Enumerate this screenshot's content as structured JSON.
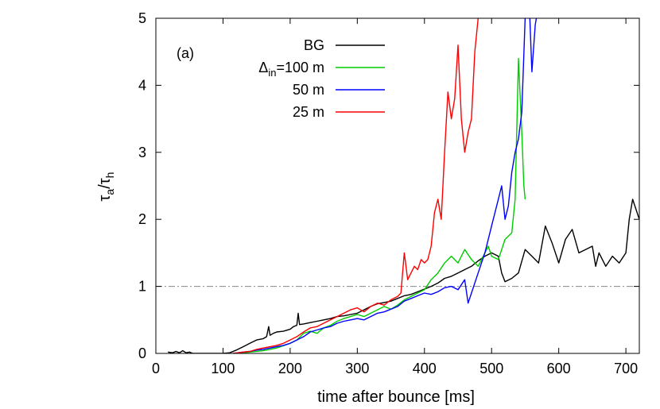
{
  "chart_data": {
    "type": "line",
    "panel_label": "(a)",
    "xlabel": "time after bounce [ms]",
    "ylabel": {
      "base": "τ",
      "sub1": "a",
      "slash": "/",
      "base2": "τ",
      "sub2": "h"
    },
    "xlim": [
      0,
      720
    ],
    "ylim": [
      0,
      5
    ],
    "xticks": [
      0,
      100,
      200,
      300,
      400,
      500,
      600,
      700
    ],
    "yticks": [
      0,
      1,
      2,
      3,
      4,
      5
    ],
    "grid": false,
    "legend_position": "top-center",
    "reference_line": {
      "y": 1,
      "style": "dash-dot",
      "color": "#888888"
    },
    "series": [
      {
        "key": "bg",
        "label": "BG",
        "color": "#000000",
        "points": [
          [
            18,
            0.02
          ],
          [
            25,
            0.01
          ],
          [
            30,
            0.03
          ],
          [
            35,
            0.01
          ],
          [
            40,
            0.04
          ],
          [
            45,
            0.01
          ],
          [
            50,
            0.02
          ],
          [
            55,
            0.0
          ],
          [
            100,
            0.0
          ],
          [
            110,
            0.01
          ],
          [
            120,
            0.05
          ],
          [
            130,
            0.1
          ],
          [
            140,
            0.15
          ],
          [
            150,
            0.2
          ],
          [
            160,
            0.22
          ],
          [
            165,
            0.25
          ],
          [
            168,
            0.4
          ],
          [
            170,
            0.27
          ],
          [
            175,
            0.3
          ],
          [
            180,
            0.32
          ],
          [
            190,
            0.33
          ],
          [
            200,
            0.36
          ],
          [
            205,
            0.4
          ],
          [
            210,
            0.42
          ],
          [
            212,
            0.6
          ],
          [
            214,
            0.43
          ],
          [
            220,
            0.44
          ],
          [
            230,
            0.46
          ],
          [
            240,
            0.48
          ],
          [
            250,
            0.5
          ],
          [
            260,
            0.52
          ],
          [
            270,
            0.55
          ],
          [
            280,
            0.56
          ],
          [
            290,
            0.58
          ],
          [
            300,
            0.6
          ],
          [
            310,
            0.65
          ],
          [
            320,
            0.7
          ],
          [
            330,
            0.74
          ],
          [
            340,
            0.76
          ],
          [
            350,
            0.78
          ],
          [
            360,
            0.82
          ],
          [
            370,
            0.86
          ],
          [
            380,
            0.88
          ],
          [
            390,
            0.92
          ],
          [
            400,
            0.96
          ],
          [
            410,
            1.0
          ],
          [
            420,
            1.05
          ],
          [
            430,
            1.12
          ],
          [
            440,
            1.15
          ],
          [
            450,
            1.2
          ],
          [
            460,
            1.25
          ],
          [
            470,
            1.3
          ],
          [
            480,
            1.38
          ],
          [
            490,
            1.45
          ],
          [
            500,
            1.5
          ],
          [
            510,
            1.45
          ],
          [
            515,
            1.2
          ],
          [
            520,
            1.07
          ],
          [
            530,
            1.12
          ],
          [
            540,
            1.2
          ],
          [
            550,
            1.55
          ],
          [
            560,
            1.45
          ],
          [
            570,
            1.35
          ],
          [
            580,
            1.9
          ],
          [
            590,
            1.65
          ],
          [
            600,
            1.35
          ],
          [
            610,
            1.7
          ],
          [
            620,
            1.85
          ],
          [
            630,
            1.5
          ],
          [
            640,
            1.55
          ],
          [
            650,
            1.6
          ],
          [
            655,
            1.3
          ],
          [
            660,
            1.5
          ],
          [
            670,
            1.3
          ],
          [
            680,
            1.45
          ],
          [
            690,
            1.35
          ],
          [
            700,
            1.5
          ],
          [
            705,
            2.0
          ],
          [
            710,
            2.3
          ],
          [
            715,
            2.15
          ],
          [
            720,
            2.0
          ]
        ]
      },
      {
        "key": "g100",
        "label": "Δ",
        "label_sub": "in",
        "label_tail": "=100 m",
        "color": "#00cc00",
        "points": [
          [
            120,
            0.0
          ],
          [
            140,
            0.02
          ],
          [
            160,
            0.04
          ],
          [
            180,
            0.08
          ],
          [
            200,
            0.15
          ],
          [
            210,
            0.2
          ],
          [
            220,
            0.3
          ],
          [
            230,
            0.33
          ],
          [
            240,
            0.3
          ],
          [
            250,
            0.38
          ],
          [
            260,
            0.42
          ],
          [
            270,
            0.48
          ],
          [
            280,
            0.52
          ],
          [
            290,
            0.55
          ],
          [
            300,
            0.58
          ],
          [
            310,
            0.55
          ],
          [
            320,
            0.6
          ],
          [
            330,
            0.65
          ],
          [
            340,
            0.7
          ],
          [
            350,
            0.66
          ],
          [
            360,
            0.72
          ],
          [
            370,
            0.8
          ],
          [
            380,
            0.85
          ],
          [
            390,
            0.9
          ],
          [
            400,
            0.95
          ],
          [
            410,
            1.1
          ],
          [
            420,
            1.2
          ],
          [
            430,
            1.35
          ],
          [
            440,
            1.45
          ],
          [
            450,
            1.35
          ],
          [
            460,
            1.55
          ],
          [
            470,
            1.4
          ],
          [
            480,
            1.3
          ],
          [
            490,
            1.5
          ],
          [
            495,
            1.6
          ],
          [
            500,
            1.45
          ],
          [
            510,
            1.4
          ],
          [
            520,
            1.7
          ],
          [
            530,
            1.8
          ],
          [
            535,
            2.3
          ],
          [
            540,
            4.4
          ],
          [
            545,
            3.3
          ],
          [
            548,
            2.5
          ],
          [
            550,
            2.3
          ]
        ]
      },
      {
        "key": "b50",
        "label": "50 m",
        "color": "#0000ff",
        "points": [
          [
            115,
            0.0
          ],
          [
            130,
            0.02
          ],
          [
            140,
            0.03
          ],
          [
            150,
            0.05
          ],
          [
            160,
            0.06
          ],
          [
            170,
            0.08
          ],
          [
            180,
            0.1
          ],
          [
            190,
            0.12
          ],
          [
            200,
            0.15
          ],
          [
            210,
            0.2
          ],
          [
            220,
            0.25
          ],
          [
            230,
            0.32
          ],
          [
            240,
            0.35
          ],
          [
            250,
            0.38
          ],
          [
            260,
            0.4
          ],
          [
            270,
            0.45
          ],
          [
            280,
            0.48
          ],
          [
            290,
            0.5
          ],
          [
            300,
            0.52
          ],
          [
            310,
            0.5
          ],
          [
            320,
            0.55
          ],
          [
            330,
            0.6
          ],
          [
            340,
            0.62
          ],
          [
            350,
            0.66
          ],
          [
            360,
            0.7
          ],
          [
            370,
            0.78
          ],
          [
            380,
            0.82
          ],
          [
            390,
            0.86
          ],
          [
            400,
            0.9
          ],
          [
            410,
            0.88
          ],
          [
            420,
            0.92
          ],
          [
            430,
            0.98
          ],
          [
            440,
            1.0
          ],
          [
            450,
            0.95
          ],
          [
            460,
            1.1
          ],
          [
            465,
            0.75
          ],
          [
            470,
            0.9
          ],
          [
            480,
            1.2
          ],
          [
            490,
            1.5
          ],
          [
            500,
            1.9
          ],
          [
            510,
            2.3
          ],
          [
            515,
            2.5
          ],
          [
            520,
            2.0
          ],
          [
            525,
            2.2
          ],
          [
            530,
            2.7
          ],
          [
            535,
            3.0
          ],
          [
            540,
            3.2
          ],
          [
            545,
            3.6
          ],
          [
            550,
            5.0
          ],
          [
            555,
            5.5
          ],
          [
            560,
            4.2
          ],
          [
            565,
            4.9
          ],
          [
            570,
            5.2
          ]
        ]
      },
      {
        "key": "r25",
        "label": "25 m",
        "color": "#ff0000",
        "points": [
          [
            115,
            0.0
          ],
          [
            130,
            0.02
          ],
          [
            140,
            0.03
          ],
          [
            150,
            0.06
          ],
          [
            160,
            0.08
          ],
          [
            170,
            0.1
          ],
          [
            180,
            0.12
          ],
          [
            190,
            0.15
          ],
          [
            200,
            0.2
          ],
          [
            210,
            0.25
          ],
          [
            220,
            0.32
          ],
          [
            230,
            0.38
          ],
          [
            240,
            0.4
          ],
          [
            250,
            0.45
          ],
          [
            260,
            0.5
          ],
          [
            270,
            0.55
          ],
          [
            280,
            0.6
          ],
          [
            290,
            0.65
          ],
          [
            300,
            0.68
          ],
          [
            310,
            0.62
          ],
          [
            320,
            0.7
          ],
          [
            330,
            0.75
          ],
          [
            340,
            0.72
          ],
          [
            350,
            0.8
          ],
          [
            360,
            0.85
          ],
          [
            365,
            0.9
          ],
          [
            370,
            1.5
          ],
          [
            375,
            1.1
          ],
          [
            380,
            1.2
          ],
          [
            385,
            1.3
          ],
          [
            390,
            1.25
          ],
          [
            395,
            1.4
          ],
          [
            400,
            1.35
          ],
          [
            405,
            1.4
          ],
          [
            410,
            1.6
          ],
          [
            415,
            2.1
          ],
          [
            420,
            2.3
          ],
          [
            425,
            2.0
          ],
          [
            430,
            3.0
          ],
          [
            435,
            3.9
          ],
          [
            440,
            3.5
          ],
          [
            445,
            3.8
          ],
          [
            450,
            4.6
          ],
          [
            455,
            3.5
          ],
          [
            460,
            3.0
          ],
          [
            465,
            3.3
          ],
          [
            470,
            3.5
          ],
          [
            475,
            4.5
          ],
          [
            480,
            5.0
          ],
          [
            485,
            5.3
          ]
        ]
      }
    ]
  }
}
